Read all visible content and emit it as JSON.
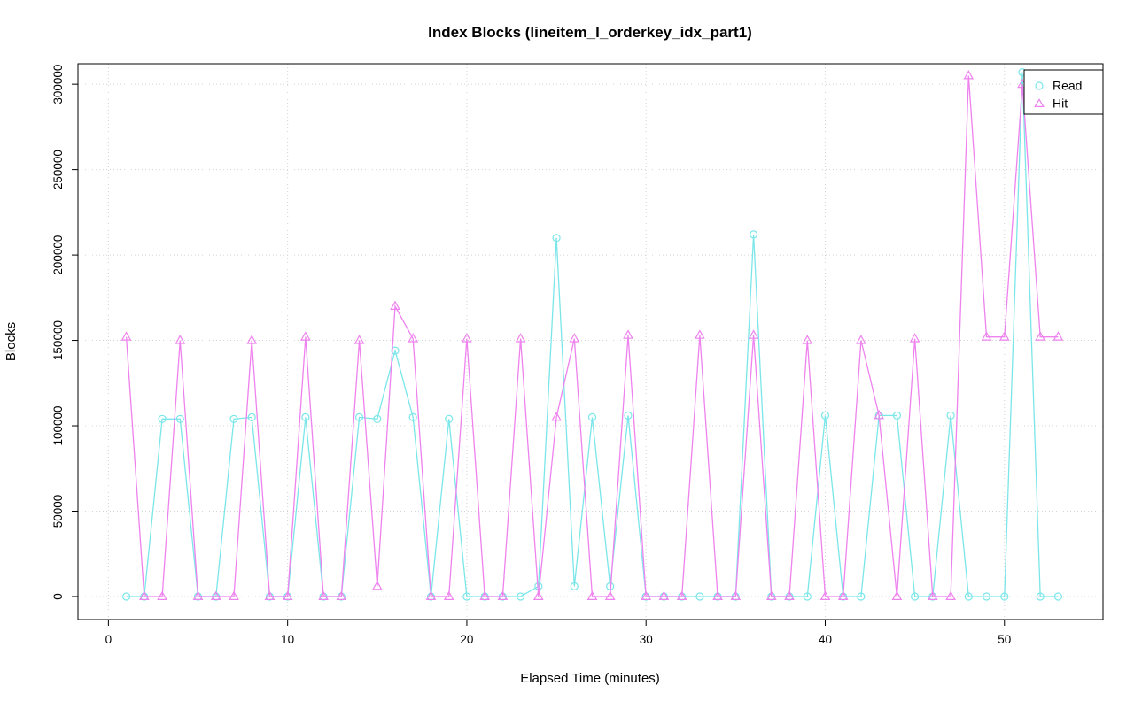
{
  "chart_data": {
    "type": "line",
    "title": "Index Blocks (lineitem_l_orderkey_idx_part1)",
    "xlabel": "Elapsed Time (minutes)",
    "ylabel": "Blocks",
    "xlim": [
      -1.7,
      55.5
    ],
    "ylim": [
      -13500,
      312000
    ],
    "xticks": [
      0,
      10,
      20,
      30,
      40,
      50
    ],
    "yticks": [
      0,
      50000,
      100000,
      150000,
      200000,
      250000,
      300000
    ],
    "grid": true,
    "legend_position": "top-right",
    "series": [
      {
        "name": "Read",
        "color": "#7be6e9",
        "marker": "circle",
        "x": [
          1,
          2,
          3,
          4,
          5,
          6,
          7,
          8,
          9,
          10,
          11,
          12,
          13,
          14,
          15,
          16,
          17,
          18,
          19,
          20,
          21,
          22,
          23,
          24,
          25,
          26,
          27,
          28,
          29,
          30,
          31,
          32,
          33,
          34,
          35,
          36,
          37,
          38,
          39,
          40,
          41,
          42,
          43,
          44,
          45,
          46,
          47,
          48,
          49,
          50,
          51,
          52,
          53
        ],
        "y": [
          0,
          0,
          104000,
          104000,
          0,
          0,
          104000,
          105000,
          0,
          0,
          105000,
          0,
          0,
          105000,
          104000,
          144000,
          105000,
          0,
          104000,
          0,
          0,
          0,
          0,
          6000,
          210000,
          6000,
          105000,
          6000,
          106000,
          0,
          0,
          0,
          0,
          0,
          0,
          212000,
          0,
          0,
          0,
          106000,
          0,
          0,
          106000,
          106000,
          0,
          0,
          106000,
          0,
          0,
          0,
          307000,
          0,
          0
        ]
      },
      {
        "name": "Hit",
        "color": "#ee82ee",
        "marker": "triangle",
        "x": [
          1,
          2,
          3,
          4,
          5,
          6,
          7,
          8,
          9,
          10,
          11,
          12,
          13,
          14,
          15,
          16,
          17,
          18,
          19,
          20,
          21,
          22,
          23,
          24,
          25,
          26,
          27,
          28,
          29,
          30,
          31,
          32,
          33,
          34,
          35,
          36,
          37,
          38,
          39,
          40,
          41,
          42,
          43,
          44,
          45,
          46,
          47,
          48,
          49,
          50,
          51,
          52,
          53
        ],
        "y": [
          152000,
          0,
          0,
          150000,
          0,
          0,
          0,
          150000,
          0,
          0,
          152000,
          0,
          0,
          150000,
          6000,
          170000,
          151000,
          0,
          0,
          151000,
          0,
          0,
          151000,
          0,
          105000,
          151000,
          0,
          0,
          153000,
          0,
          0,
          0,
          153000,
          0,
          0,
          153000,
          0,
          0,
          150000,
          0,
          0,
          150000,
          106000,
          0,
          151000,
          0,
          0,
          305000,
          152000,
          152000,
          300000,
          152000,
          152000
        ]
      }
    ]
  }
}
